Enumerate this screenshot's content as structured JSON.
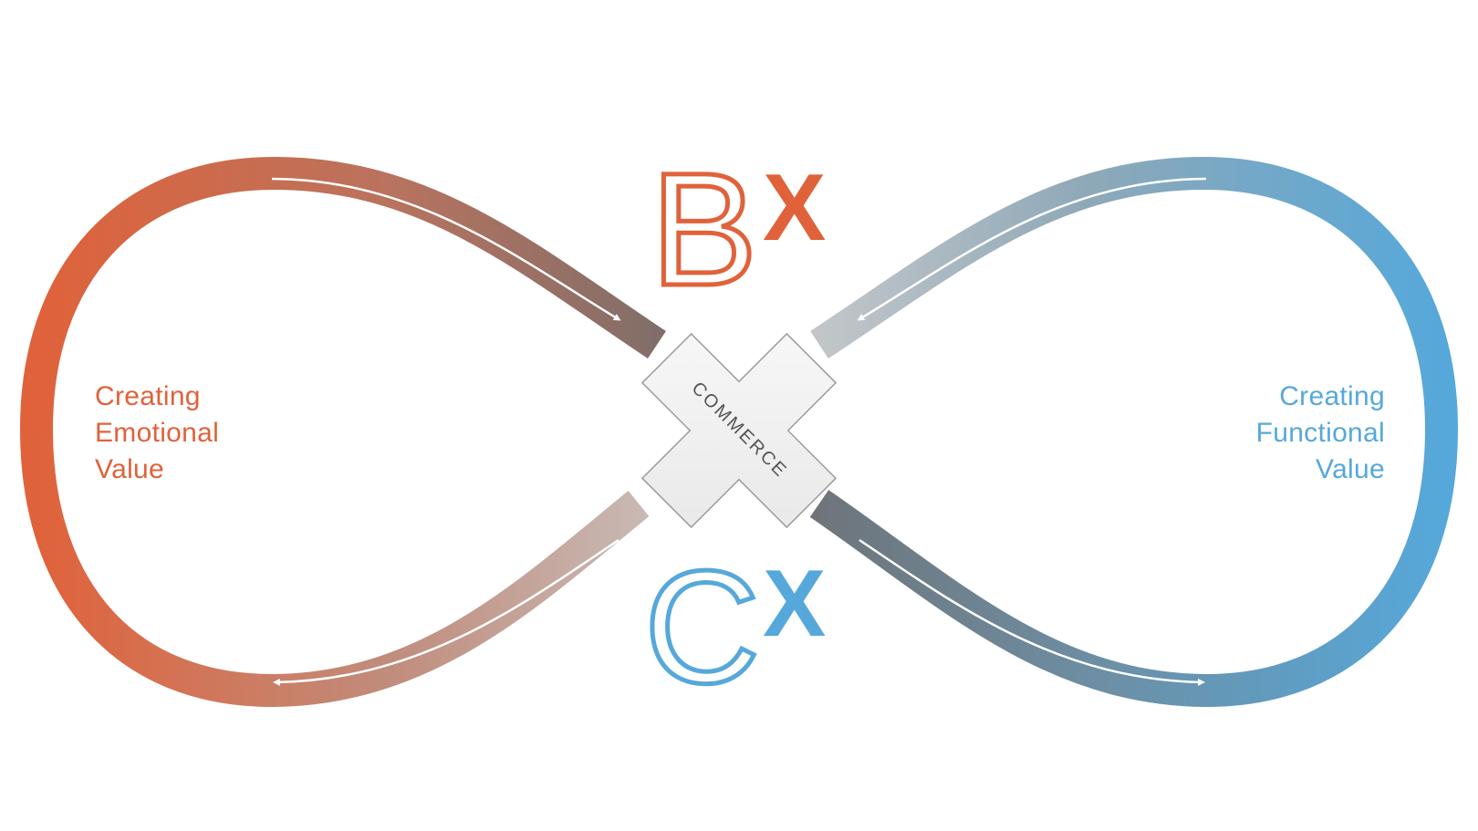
{
  "diagram": {
    "top_brand": {
      "letter": "B",
      "superscript": "X"
    },
    "bottom_brand": {
      "letter": "C",
      "superscript": "X"
    },
    "center_label": "COMMERCE",
    "left_label": {
      "lines": [
        "Creating",
        "Emotional",
        "Value"
      ]
    },
    "right_label": {
      "lines": [
        "Creating",
        "Functional",
        "Value"
      ]
    }
  },
  "colors": {
    "orange": "#e0623a",
    "blue": "#56a8da",
    "center_gray": "#7f7a78",
    "background": "#ffffff"
  }
}
